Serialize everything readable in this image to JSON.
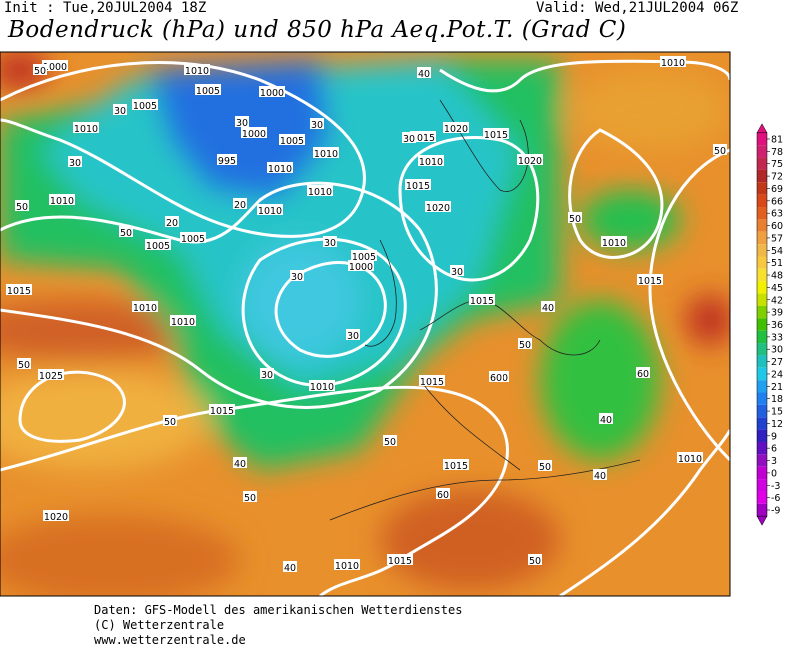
{
  "header": {
    "init": "Init : Tue,20JUL2004 18Z",
    "valid": "Valid: Wed,21JUL2004 06Z",
    "title": "Bodendruck (hPa) und 850 hPa Aeq.Pot.T. (Grad C)"
  },
  "colorbar": {
    "ticks": [
      81,
      78,
      75,
      72,
      69,
      66,
      63,
      60,
      57,
      54,
      51,
      48,
      45,
      42,
      39,
      36,
      33,
      30,
      27,
      24,
      21,
      18,
      15,
      12,
      9,
      6,
      3,
      0,
      -3,
      -6,
      -9
    ],
    "colors": [
      "#e0107f",
      "#d0206f",
      "#c02850",
      "#b02828",
      "#c03818",
      "#d84818",
      "#e06020",
      "#e88030",
      "#f0a040",
      "#f0b848",
      "#f8c840",
      "#f8e030",
      "#f0f000",
      "#c8e000",
      "#80d000",
      "#40c000",
      "#20c040",
      "#20c080",
      "#20c0c0",
      "#20c8e8",
      "#20a0f0",
      "#2080f0",
      "#2060e0",
      "#2040d0",
      "#3020c0",
      "#6010c0",
      "#9010c0",
      "#c000d0",
      "#d000e0",
      "#e000e8",
      "#a000c0"
    ]
  },
  "isobar_labels": [
    1000,
    1010,
    1005,
    1000,
    1005,
    1010,
    1000,
    1005,
    995,
    1010,
    1010,
    1010,
    1010,
    1010,
    1005,
    1005,
    1015,
    1010,
    1010,
    1025,
    1015,
    1010,
    1005,
    1000,
    1015,
    1020,
    1015,
    1020,
    1015,
    1010,
    1020,
    1015,
    1015,
    1010,
    1015,
    1015,
    1015,
    1010,
    1020,
    1010,
    1010
  ],
  "temperature_labels": [
    50,
    30,
    30,
    20,
    30,
    30,
    30,
    20,
    30,
    30,
    30,
    50,
    50,
    30,
    30,
    40,
    50,
    50,
    40,
    50,
    60,
    50,
    50,
    40,
    40,
    50,
    60,
    60,
    50,
    50,
    40,
    50,
    60,
    40
  ],
  "footer": [
    "Daten: GFS-Modell des amerikanischen Wetterdienstes",
    "(C) Wetterzentrale",
    "www.wetterzentrale.de"
  ]
}
